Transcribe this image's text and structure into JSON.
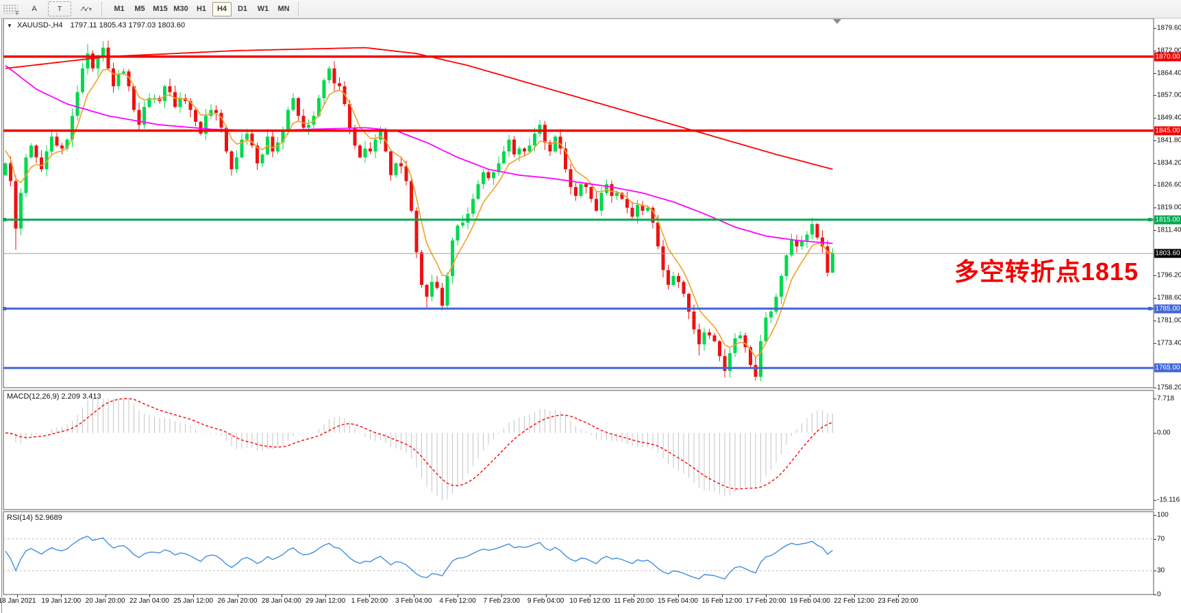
{
  "toolbar": {
    "grip_label": "F",
    "tools": [
      {
        "name": "text-label-tool",
        "glyph": "A"
      },
      {
        "name": "text-box-tool",
        "glyph": "T"
      },
      {
        "name": "arrows-tool",
        "glyph": "↗↙",
        "caret": "▾"
      }
    ],
    "timeframes": [
      "M1",
      "M5",
      "M15",
      "M30",
      "H1",
      "H4",
      "D1",
      "W1",
      "MN"
    ],
    "active_timeframe": "H4"
  },
  "header": {
    "dropdown_icon": "▼",
    "symbol": "XAUUSD-,H4",
    "ohlc_text": "1797.11 1805.43 1797.03 1803.60"
  },
  "annotation": {
    "text": "多空转折点1815",
    "color": "#f20000"
  },
  "price_axis": {
    "ticks": [
      {
        "t": "1879.60",
        "p": 1879.6
      },
      {
        "t": "1872.00",
        "p": 1872.0
      },
      {
        "t": "1864.40",
        "p": 1864.4
      },
      {
        "t": "1857.00",
        "p": 1857.0
      },
      {
        "t": "1849.40",
        "p": 1849.4
      },
      {
        "t": "1841.80",
        "p": 1841.8
      },
      {
        "t": "1834.20",
        "p": 1834.2
      },
      {
        "t": "1826.60",
        "p": 1826.6
      },
      {
        "t": "1819.00",
        "p": 1819.0
      },
      {
        "t": "1811.40",
        "p": 1811.4
      },
      {
        "t": "1796.20",
        "p": 1796.2
      },
      {
        "t": "1788.60",
        "p": 1788.6
      },
      {
        "t": "1781.00",
        "p": 1781.0
      },
      {
        "t": "1773.40",
        "p": 1773.4
      },
      {
        "t": "1758.20",
        "p": 1758.2
      }
    ]
  },
  "macd_panel": {
    "label": "MACD(12,26,9)",
    "value_main": "2.209",
    "value_signal": "3.413",
    "axis": [
      {
        "t": "7.718",
        "v": 7.718
      },
      {
        "t": "0.00",
        "v": 0
      },
      {
        "t": "-15.116",
        "v": -15.116
      }
    ]
  },
  "rsi_panel": {
    "label": "RSI(14)",
    "value": "52.9689",
    "axis": [
      {
        "t": "100",
        "v": 100
      },
      {
        "t": "70",
        "v": 70
      },
      {
        "t": "30",
        "v": 30
      },
      {
        "t": "0",
        "v": 0
      }
    ]
  },
  "chart_data": {
    "type": "candlestick",
    "symbol": "XAUUSD",
    "timeframe": "H4",
    "current_bar": {
      "open": 1797.11,
      "high": 1805.43,
      "low": 1797.03,
      "close": 1803.6
    },
    "visible_price_range": [
      1758.2,
      1879.6
    ],
    "timeline": [
      "18 Jan 2021",
      "19 Jan 12:00",
      "20 Jan 20:00",
      "22 Jan 04:00",
      "25 Jan 12:00",
      "26 Jan 20:00",
      "28 Jan 04:00",
      "29 Jan 12:00",
      "1 Feb 20:00",
      "3 Feb 04:00",
      "4 Feb 12:00",
      "7 Feb 23:00",
      "9 Feb 04:00",
      "10 Feb 12:00",
      "11 Feb 20:00",
      "15 Feb 04:00",
      "16 Feb 12:00",
      "17 Feb 20:00",
      "19 Feb 04:00",
      "22 Feb 12:00",
      "23 Feb 20:00"
    ],
    "first_open": 1830,
    "closes": [
      1834,
      1828,
      1812,
      1824,
      1836,
      1840,
      1836,
      1832,
      1838,
      1843,
      1840,
      1839,
      1842,
      1850,
      1858,
      1866,
      1871,
      1866,
      1870,
      1873,
      1866,
      1860,
      1864,
      1865,
      1860,
      1852,
      1847,
      1853,
      1856,
      1856,
      1855,
      1860,
      1858,
      1853,
      1856,
      1855,
      1852,
      1848,
      1844,
      1850,
      1852,
      1851,
      1846,
      1838,
      1832,
      1836,
      1842,
      1844,
      1840,
      1834,
      1837,
      1843,
      1838,
      1841,
      1845,
      1852,
      1856,
      1850,
      1846,
      1847,
      1850,
      1856,
      1862,
      1866,
      1861,
      1860,
      1854,
      1846,
      1840,
      1836,
      1839,
      1838,
      1842,
      1845,
      1838,
      1830,
      1834,
      1833,
      1828,
      1818,
      1804,
      1793,
      1789,
      1794,
      1792,
      1786,
      1796,
      1808,
      1813,
      1814,
      1817,
      1822,
      1827,
      1831,
      1829,
      1831,
      1834,
      1838,
      1842,
      1837,
      1839,
      1838,
      1840,
      1844,
      1847,
      1841,
      1838,
      1843,
      1839,
      1832,
      1826,
      1823,
      1827,
      1826,
      1822,
      1818,
      1824,
      1827,
      1823,
      1824,
      1822,
      1819,
      1816,
      1820,
      1818,
      1819,
      1814,
      1806,
      1798,
      1793,
      1796,
      1794,
      1790,
      1784,
      1778,
      1773,
      1777,
      1776,
      1774,
      1769,
      1764,
      1770,
      1775,
      1776,
      1772,
      1766,
      1762,
      1774,
      1782,
      1784,
      1789,
      1796,
      1803,
      1808,
      1806,
      1808,
      1810,
      1813.5,
      1809,
      1806,
      1797.1,
      1803.6
    ],
    "wick_overrides": {
      "2": {
        "low": 1804.8
      },
      "16": {
        "high": 1874.3
      },
      "19": {
        "high": 1875.2
      },
      "56": {
        "high": 1857.6
      },
      "63": {
        "high": 1866.8
      },
      "82": {
        "low": 1785.2
      },
      "85": {
        "low": 1784.4
      },
      "104": {
        "high": 1848.6
      },
      "135": {
        "low": 1769.2
      },
      "140": {
        "low": 1761.8
      },
      "146": {
        "low": 1760.7
      },
      "157": {
        "high": 1815.6
      },
      "161": {
        "high": 1805.43,
        "low": 1797.03
      }
    },
    "hlines": [
      {
        "price": 1870.0,
        "label": "1870.00",
        "color": "#f20000",
        "width": 3.5,
        "handles": false
      },
      {
        "price": 1845.0,
        "label": "1845.00",
        "color": "#f20000",
        "width": 3.5,
        "handles": false
      },
      {
        "price": 1815.0,
        "label": "1815.00",
        "color": "#00a84e",
        "width": 3,
        "handles": true
      },
      {
        "price": 1785.0,
        "label": "1785.00",
        "color": "#4166d8",
        "width": 3,
        "handles": true
      },
      {
        "price": 1765.0,
        "label": "1765.00",
        "color": "#4166d8",
        "width": 3,
        "handles": false
      }
    ],
    "current_price": {
      "price": 1803.6,
      "label": "1803.60",
      "line_color": "#9b9b9b",
      "badge_color": "#000000"
    },
    "moving_averages": {
      "red_keypoints": [
        [
          0,
          1866
        ],
        [
          20,
          1870
        ],
        [
          45,
          1872
        ],
        [
          70,
          1873
        ],
        [
          80,
          1871
        ],
        [
          90,
          1867
        ],
        [
          100,
          1862
        ],
        [
          110,
          1857
        ],
        [
          120,
          1852
        ],
        [
          130,
          1847
        ],
        [
          140,
          1842
        ],
        [
          150,
          1837
        ],
        [
          161,
          1832
        ]
      ],
      "magenta_keypoints": [
        [
          0,
          1867
        ],
        [
          6,
          1859
        ],
        [
          12,
          1854
        ],
        [
          20,
          1850
        ],
        [
          30,
          1847
        ],
        [
          40,
          1845.5
        ],
        [
          50,
          1845
        ],
        [
          60,
          1845.5
        ],
        [
          70,
          1846
        ],
        [
          76,
          1845
        ],
        [
          82,
          1841
        ],
        [
          88,
          1836
        ],
        [
          94,
          1832
        ],
        [
          100,
          1830
        ],
        [
          106,
          1829
        ],
        [
          112,
          1827.5
        ],
        [
          118,
          1826
        ],
        [
          124,
          1824
        ],
        [
          130,
          1821
        ],
        [
          136,
          1817
        ],
        [
          142,
          1812.5
        ],
        [
          148,
          1809.5
        ],
        [
          154,
          1808
        ],
        [
          161,
          1807
        ]
      ],
      "orange_ema_alpha": 0.28,
      "orange_seed": 1840
    },
    "macd": {
      "fast": 12,
      "slow": 26,
      "signal": 9,
      "scale_max": 7.718,
      "scale_min": -15.116
    },
    "rsi": {
      "period": 14,
      "levels": [
        70,
        30
      ],
      "scale": [
        0,
        100
      ]
    },
    "colors": {
      "up_candle": "#00d94e",
      "down_candle": "#ee1111",
      "ma_orange": "#efa52e",
      "ma_magenta": "#ff00ff",
      "ma_red": "#ff0000",
      "macd_hist": "#c4c4c4",
      "macd_signal": "#ff0000",
      "rsi_line": "#3f8ede",
      "panel_border": "#555555"
    }
  }
}
